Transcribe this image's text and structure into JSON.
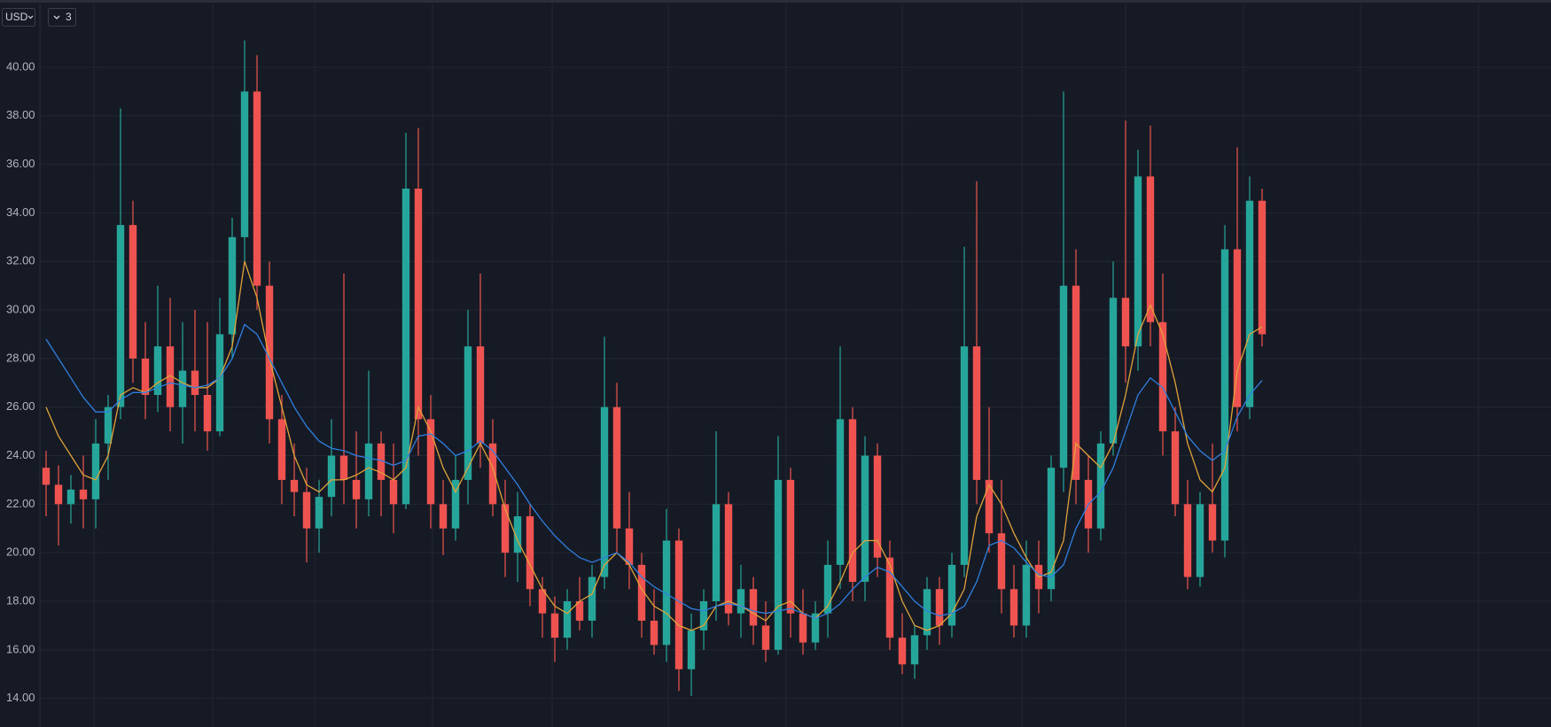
{
  "toolbar": {
    "currency": "USD",
    "count": "3"
  },
  "chart_data": {
    "type": "candlestick",
    "up_color": "#26a69a",
    "down_color": "#ef5350",
    "ylim": [
      12.82,
      42.77
    ],
    "yticks": [
      {
        "value": 14,
        "label": "14.00"
      },
      {
        "value": 16,
        "label": "16.00"
      },
      {
        "value": 18,
        "label": "18.00"
      },
      {
        "value": 20,
        "label": "20.00"
      },
      {
        "value": 22,
        "label": "22.00"
      },
      {
        "value": 24,
        "label": "24.00"
      },
      {
        "value": 26,
        "label": "26.00"
      },
      {
        "value": 28,
        "label": "28.00"
      },
      {
        "value": 30,
        "label": "30.00"
      },
      {
        "value": 32,
        "label": "32.00"
      },
      {
        "value": 34,
        "label": "34.00"
      },
      {
        "value": 36,
        "label": "36.00"
      },
      {
        "value": 38,
        "label": "38.00"
      },
      {
        "value": 40,
        "label": "40.00"
      }
    ],
    "grid": true,
    "open": [
      23.5,
      22.8,
      22.0,
      22.6,
      22.2,
      24.5,
      26.0,
      33.5,
      28.0,
      26.5,
      28.5,
      26.0,
      27.5,
      26.5,
      25.0,
      29.0,
      33.0,
      39.0,
      31.0,
      25.5,
      23.0,
      22.5,
      21.0,
      22.3,
      24.0,
      23.0,
      22.2,
      24.5,
      23.0,
      22.0,
      35.0,
      25.5,
      22.0,
      21.0,
      23.0,
      28.5,
      24.5,
      22.0,
      20.0,
      21.5,
      18.5,
      17.5,
      16.5,
      18.0,
      17.2,
      19.0,
      26.0,
      21.0,
      19.5,
      17.2,
      16.2,
      20.5,
      15.2,
      16.8,
      18.0,
      22.0,
      17.5,
      18.5,
      17.0,
      16.0,
      23.0,
      17.5,
      16.3,
      17.5,
      19.5,
      25.5,
      18.8,
      24.0,
      19.8,
      16.5,
      15.4,
      16.6,
      18.5,
      17.0,
      19.5,
      28.5,
      23.0,
      20.8,
      18.5,
      17.0,
      19.5,
      18.5,
      23.5,
      31.0,
      23.0,
      21.0,
      24.5,
      30.5,
      28.5,
      35.5,
      29.5,
      25.0,
      22.0,
      19.0,
      22.0,
      20.5,
      32.5,
      26.0,
      34.5
    ],
    "high": [
      24.2,
      23.6,
      23.2,
      24.0,
      25.5,
      26.5,
      38.3,
      34.5,
      29.5,
      31.0,
      30.5,
      29.5,
      30.0,
      29.5,
      30.5,
      33.8,
      41.1,
      40.5,
      32.0,
      26.5,
      24.5,
      23.5,
      23.0,
      25.5,
      31.5,
      25.0,
      27.5,
      25.0,
      24.5,
      37.3,
      37.5,
      26.5,
      23.0,
      24.0,
      30.0,
      31.5,
      25.5,
      23.0,
      22.5,
      22.0,
      19.0,
      18.2,
      18.5,
      19.0,
      19.5,
      28.9,
      27.0,
      22.5,
      20.0,
      18.5,
      21.8,
      21.0,
      17.5,
      18.5,
      25.0,
      22.5,
      19.5,
      19.0,
      18.0,
      24.8,
      23.5,
      18.5,
      18.0,
      20.5,
      28.5,
      26.0,
      24.8,
      24.5,
      20.5,
      17.5,
      17.0,
      19.0,
      19.0,
      20.0,
      32.6,
      35.3,
      26.0,
      23.0,
      19.5,
      20.5,
      20.5,
      24.0,
      39.0,
      32.5,
      24.0,
      25.0,
      32.0,
      37.8,
      36.6,
      37.6,
      31.5,
      26.0,
      23.0,
      22.5,
      24.5,
      33.5,
      36.7,
      35.5,
      35.0
    ],
    "low": [
      21.5,
      20.3,
      21.2,
      21.0,
      21.0,
      23.0,
      25.5,
      27.0,
      25.5,
      25.8,
      25.0,
      24.5,
      25.0,
      24.2,
      24.8,
      28.0,
      32.0,
      30.0,
      24.5,
      22.0,
      21.5,
      19.6,
      20.0,
      21.5,
      22.0,
      21.0,
      21.5,
      21.5,
      20.8,
      21.8,
      24.0,
      21.0,
      19.9,
      20.5,
      22.0,
      23.5,
      21.5,
      19.0,
      18.8,
      17.8,
      16.5,
      15.5,
      16.0,
      16.8,
      16.5,
      18.5,
      20.0,
      18.5,
      16.5,
      15.8,
      15.5,
      14.3,
      14.1,
      16.0,
      17.2,
      17.0,
      16.5,
      16.2,
      15.5,
      15.8,
      16.5,
      15.8,
      16.0,
      16.5,
      18.5,
      18.0,
      18.0,
      19.0,
      16.0,
      15.0,
      14.8,
      16.0,
      16.2,
      16.5,
      19.0,
      22.0,
      20.0,
      17.5,
      16.5,
      16.5,
      17.5,
      18.0,
      22.5,
      22.0,
      20.0,
      20.5,
      24.0,
      27.0,
      27.5,
      28.5,
      24.0,
      21.5,
      18.5,
      18.6,
      20.0,
      19.8,
      25.0,
      25.5,
      28.5
    ],
    "close": [
      22.8,
      22.0,
      22.6,
      22.2,
      24.5,
      26.0,
      33.5,
      28.0,
      26.5,
      28.5,
      26.0,
      27.5,
      26.5,
      25.0,
      29.0,
      33.0,
      39.0,
      31.0,
      25.5,
      23.0,
      22.5,
      21.0,
      22.3,
      24.0,
      23.0,
      22.2,
      24.5,
      23.0,
      22.0,
      35.0,
      25.5,
      22.0,
      21.0,
      23.0,
      28.5,
      24.5,
      22.0,
      20.0,
      21.5,
      18.5,
      17.5,
      16.5,
      18.0,
      17.2,
      19.0,
      26.0,
      21.0,
      19.5,
      17.2,
      16.2,
      20.5,
      15.2,
      16.8,
      18.0,
      22.0,
      17.5,
      18.5,
      17.0,
      16.0,
      23.0,
      17.5,
      16.3,
      17.5,
      19.5,
      25.5,
      18.8,
      24.0,
      19.8,
      16.5,
      15.4,
      16.6,
      18.5,
      17.0,
      19.5,
      28.5,
      23.0,
      20.8,
      18.5,
      17.0,
      19.5,
      18.5,
      23.5,
      31.0,
      23.0,
      21.0,
      24.5,
      30.5,
      28.5,
      35.5,
      29.5,
      25.0,
      22.0,
      19.0,
      22.0,
      20.5,
      32.5,
      26.0,
      34.5,
      29.0
    ],
    "moving_averages": [
      {
        "color": "#e0a23a",
        "values": [
          26.0,
          24.8,
          24.0,
          23.2,
          23.0,
          24.0,
          26.5,
          26.8,
          26.6,
          27.0,
          27.3,
          27.0,
          26.8,
          26.8,
          27.2,
          28.5,
          32.0,
          30.5,
          28.0,
          26.0,
          24.0,
          22.8,
          22.5,
          23.0,
          23.0,
          23.2,
          23.5,
          23.3,
          23.0,
          23.5,
          26.0,
          25.0,
          23.5,
          22.5,
          23.5,
          24.5,
          23.5,
          21.8,
          20.5,
          19.5,
          18.5,
          17.8,
          17.5,
          18.0,
          18.3,
          19.5,
          20.0,
          19.5,
          18.5,
          17.8,
          17.5,
          17.0,
          16.8,
          17.0,
          17.8,
          18.0,
          17.8,
          17.5,
          17.2,
          17.8,
          18.0,
          17.5,
          17.3,
          17.8,
          18.8,
          20.0,
          20.5,
          20.5,
          19.5,
          18.0,
          17.0,
          16.8,
          17.0,
          17.5,
          18.5,
          21.5,
          22.8,
          22.0,
          20.8,
          19.8,
          19.0,
          19.2,
          20.5,
          24.5,
          24.0,
          23.5,
          24.5,
          26.5,
          29.0,
          30.2,
          29.0,
          27.0,
          24.5,
          23.0,
          22.5,
          23.5,
          27.5,
          29.0,
          29.3
        ]
      },
      {
        "color": "#2f7fe0",
        "values": [
          28.8,
          28.0,
          27.2,
          26.4,
          25.8,
          25.8,
          26.3,
          26.6,
          26.6,
          26.8,
          27.0,
          26.9,
          26.8,
          26.9,
          27.2,
          28.0,
          29.4,
          29.0,
          28.0,
          27.0,
          26.0,
          25.2,
          24.6,
          24.3,
          24.2,
          24.0,
          23.9,
          23.8,
          23.6,
          23.8,
          24.8,
          24.9,
          24.5,
          24.0,
          24.2,
          24.6,
          24.2,
          23.5,
          22.8,
          22.0,
          21.3,
          20.7,
          20.2,
          19.8,
          19.6,
          19.8,
          20.0,
          19.6,
          19.0,
          18.6,
          18.3,
          18.0,
          17.7,
          17.6,
          17.8,
          17.9,
          17.8,
          17.6,
          17.5,
          17.6,
          17.7,
          17.5,
          17.3,
          17.5,
          17.9,
          18.5,
          19.0,
          19.4,
          19.2,
          18.6,
          18.0,
          17.6,
          17.4,
          17.5,
          17.8,
          18.8,
          20.3,
          20.5,
          20.2,
          19.6,
          19.1,
          19.0,
          19.5,
          21.0,
          22.0,
          22.5,
          23.5,
          25.0,
          26.5,
          27.2,
          26.8,
          25.8,
          24.8,
          24.2,
          23.8,
          24.2,
          25.6,
          26.5,
          27.1
        ]
      }
    ]
  }
}
